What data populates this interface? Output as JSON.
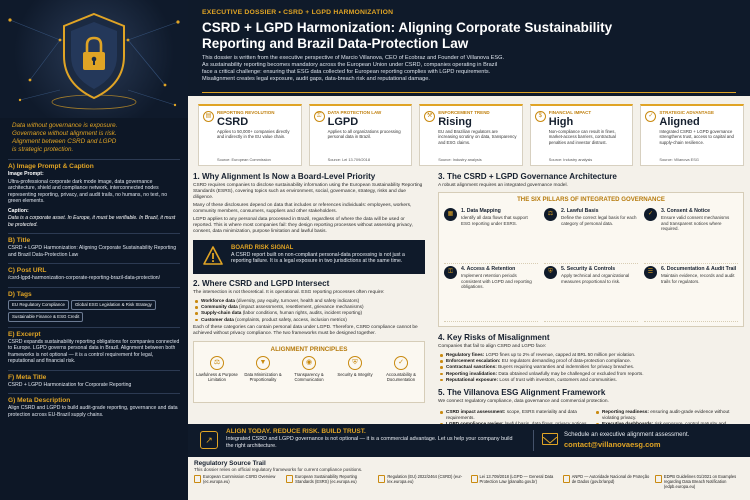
{
  "sidebar": {
    "quote": [
      "Data without governance is exposure.",
      "Governance without alignment is risk.",
      "Alignment between CSRD and LGPD",
      "is strategic protection."
    ],
    "sections": {
      "image": {
        "title": "A) Image Prompt & Caption",
        "prompt_label": "Image Prompt:",
        "prompt": "Ultra-professional corporate dark mode image, data governance architecture, shield and compliance network, interconnected nodes representing reporting, privacy, and audit trails, no humans, no text, no green elements.",
        "caption_label": "Caption:",
        "caption": "Data is a corporate asset. In Europe, it must be verifiable. In Brazil, it must be protected."
      },
      "title": {
        "title": "B) Title",
        "text": "CSRD + LGPD Harmonization: Aligning Corporate Sustainability Reporting and Brazil Data-Protection Law"
      },
      "url": {
        "title": "C) Post URL",
        "text": "/csrd-lgpd-harmonization-corporate-reporting-brazil-data-protection/"
      },
      "tags": {
        "title": "D) Tags",
        "items": [
          "EU Regulatory Compliance",
          "Global ESG Legislation & Risk Strategy",
          "Sustainable Finance & ESG Credit"
        ]
      },
      "excerpt": {
        "title": "E) Excerpt",
        "text": "CSRD expands sustainability reporting obligations for companies connected to Europe. LGPD governs personal data in Brazil. Alignment between both frameworks is not optional — it is a control requirement for legal, reputational and financial risk."
      },
      "meta_title": {
        "title": "F) Meta Title",
        "text": "CSRD + LGPD Harmonization for Corporate Reporting"
      },
      "meta_desc": {
        "title": "G) Meta Description",
        "text": "Align CSRD and LGPD to build audit-grade reporting, governance and data protection across EU-Brazil supply chains."
      }
    }
  },
  "header": {
    "eyebrow": "EXECUTIVE DOSSIER • CSRD + LGPD HARMONIZATION",
    "title": "CSRD + LGPD Harmonization: Aligning Corporate Sustainability Reporting and Brazil Data-Protection Law",
    "intro": [
      "This dossier is written from the executive perspective of Marcio Villanova, CEO of Ecobraz and Founder of Villanova ESG.",
      "As sustainability reporting becomes mandatory across the European Union under CSRD, companies operating in Brazil",
      "face a critical challenge: ensuring that ESG data collected for European reporting complies with LGPD requirements.",
      "Misalignment creates legal exposure, audit gaps, data-breach risk and reputational damage."
    ]
  },
  "cards": [
    {
      "label": "REPORTING REVOLUTION",
      "value": "CSRD",
      "icon": "document-icon",
      "desc": "Applies to 50,000+ companies directly and indirectly in the EU value chain.",
      "source": "Source: European Commission"
    },
    {
      "label": "DATA PROTECTION LAW",
      "value": "LGPD",
      "icon": "lock-icon",
      "desc": "Applies to all organizations processing personal data in Brazil.",
      "source": "Source: Lei 13.709/2018"
    },
    {
      "label": "ENFORCEMENT TREND",
      "value": "Rising",
      "icon": "gavel-icon",
      "desc": "EU and Brazilian regulators are increasing scrutiny on data, transparency and ESG claims.",
      "source": "Source: Industry analysis"
    },
    {
      "label": "FINANCIAL IMPACT",
      "value": "High",
      "icon": "money-icon",
      "desc": "Non-compliance can result in fines, market-access barriers, contractual penalties and investor distrust.",
      "source": "Source: Industry analysis"
    },
    {
      "label": "STRATEGIC ADVANTAGE",
      "value": "Aligned",
      "icon": "shield-check-icon",
      "desc": "Integrated CSRD + LGPD governance strengthens trust, access to capital and supply-chain resilience.",
      "source": "Source: Villanova ESG"
    }
  ],
  "s1": {
    "title": "1. Why Alignment Is Now a Board-Level Priority",
    "p1": "CSRD requires companies to disclose sustainability information using the European Sustainability Reporting Standards (ESRS), covering topics such as environment, social, governance, strategy, risks and due diligence.",
    "p2": "Many of these disclosures depend on data that includes or references individuals: employees, workers, community members, consumers, suppliers and other stakeholders.",
    "p3": "LGPD applies to any personal data processed in Brazil, regardless of where the data will be used or reported. This is where most companies fail: they design reporting processes without assessing privacy, consent, data minimization, purpose limitation and lawful basis."
  },
  "risk": {
    "title": "BOARD RISK SIGNAL",
    "text": "A CSRD report built on non-compliant personal-data processing is not just a reporting failure. It is a legal exposure in two jurisdictions at the same time."
  },
  "s2": {
    "title": "2. Where CSRD and LGPD Intersect",
    "p1": "The intersection is not theoretical. It is operational. ESG reporting processes often require:",
    "items": [
      {
        "k": "Workforce data",
        "v": "(diversity, pay equity, turnover, health and safety indicators)"
      },
      {
        "k": "Community data",
        "v": "(impact assessments, resettlement, grievance mechanisms)"
      },
      {
        "k": "Supply-chain data",
        "v": "(labor conditions, human rights, audits, incident reporting)"
      },
      {
        "k": "Customer data",
        "v": "(complaints, product safety, access, inclusion metrics)"
      }
    ],
    "p2": "Each of these categories can contain personal data under LGPD. Therefore, CSRD compliance cannot be achieved without privacy compliance. The two frameworks must be designed together."
  },
  "principles": {
    "title": "ALIGNMENT PRINCIPLES",
    "items": [
      {
        "icon": "scales-icon",
        "glyph": "⚖",
        "label": "Lawfulness & Purpose Limitation"
      },
      {
        "icon": "filter-icon",
        "glyph": "▼",
        "label": "Data Minimization & Proportionality"
      },
      {
        "icon": "eye-icon",
        "glyph": "◉",
        "label": "Transparency & Communication"
      },
      {
        "icon": "security-icon",
        "glyph": "⛨",
        "label": "Security & Integrity"
      },
      {
        "icon": "audit-icon",
        "glyph": "✓",
        "label": "Accountability & Documentation"
      }
    ]
  },
  "s3": {
    "title": "3. The CSRD + LGPD Governance Architecture",
    "p1": "A robust alignment requires an integrated governance model.",
    "pillars_title": "THE SIX PILLARS OF INTEGRATED GOVERNANCE",
    "pillars": [
      {
        "icon": "map-icon",
        "glyph": "▦",
        "title": "1. Data Mapping",
        "desc": "Identify all data flows that support ESG reporting under ESRS."
      },
      {
        "icon": "balance-icon",
        "glyph": "⚖",
        "title": "2. Lawful Basis",
        "desc": "Define the correct legal basis for each category of personal data."
      },
      {
        "icon": "consent-icon",
        "glyph": "✓",
        "title": "3. Consent & Notice",
        "desc": "Ensure valid consent mechanisms and transparent notices where required."
      },
      {
        "icon": "key-icon",
        "glyph": "⚿",
        "title": "4. Access & Retention",
        "desc": "Implement retention periods consistent with LGPD and reporting obligations."
      },
      {
        "icon": "lock-icon",
        "glyph": "⛨",
        "title": "5. Security & Controls",
        "desc": "Apply technical and organizational measures proportional to risk."
      },
      {
        "icon": "record-icon",
        "glyph": "☰",
        "title": "6. Documentation & Audit Trail",
        "desc": "Maintain evidence, records and audit trails for regulators."
      }
    ]
  },
  "s4": {
    "title": "4. Key Risks of Misalignment",
    "p1": "Companies that fail to align CSRD and LGPD face:",
    "items": [
      {
        "k": "Regulatory fines:",
        "v": "LGPD fines up to 2% of revenue, capped at BRL 50 million per violation."
      },
      {
        "k": "Enforcement escalation:",
        "v": "EU regulators demanding proof of data-protection compliance."
      },
      {
        "k": "Contractual sanctions:",
        "v": "Buyers requiring warranties and indemnities for privacy breaches."
      },
      {
        "k": "Reporting invalidation:",
        "v": "Data obtained unlawfully may be challenged or excluded from reports."
      },
      {
        "k": "Reputational exposure:",
        "v": "Loss of trust with investors, customers and communities."
      }
    ]
  },
  "s5": {
    "title": "5. The Villanova ESG Alignment Framework",
    "p1": "We connect regulatory compliance, data governance and commercial protection.",
    "left": [
      {
        "k": "CSRD impact assessment:",
        "v": "scope, ESRS materiality and data requirements."
      },
      {
        "k": "LGPD compliance review:",
        "v": "lawful basis, data flows, privacy notices and data subject rights, DPIAs."
      },
      {
        "k": "Governance integration:",
        "v": "policies, roles, controls, retention and security architecture."
      }
    ],
    "right": [
      {
        "k": "Reporting readiness:",
        "v": "ensuring audit-grade evidence without violating privacy."
      },
      {
        "k": "Executive dashboards:",
        "v": "risk exposure, control maturity and remediation roadmap."
      }
    ]
  },
  "banner": {
    "title": "ALIGN TODAY. REDUCE RISK. BUILD TRUST.",
    "text": "Integrated CSRD and LGPD governance is not optional — it is a commercial advantage. Let us help your company build the right architecture.",
    "cta": "Schedule an executive alignment assessment.",
    "email": "contact@villanovaesg.com"
  },
  "sources": {
    "title": "Regulatory Source Trail",
    "subtitle": "This dossier relies on official regulatory frameworks for current compliance positions.",
    "items": [
      "European Commission CSRD Overview (ec.europa.eu)",
      "European Sustainability Reporting Standards (ESRS) (ec.europa.eu)",
      "Regulation (EU) 2022/2464 (CSRD) (eur-lex.europa.eu)",
      "Lei 13.709/2018 (LGPD — General Data Protection Law (planalto.gov.br)",
      "ANPD — Autoridade Nacional de Proteção de Dados (gov.br/anpd)",
      "EDPB Guidelines 01/2021 on Examples regarding Data Breach Notification (edpb.europa.eu)"
    ]
  },
  "colors": {
    "accent": "#e0a425",
    "navy": "#0f1a2a",
    "paper": "#f4f1ea"
  }
}
